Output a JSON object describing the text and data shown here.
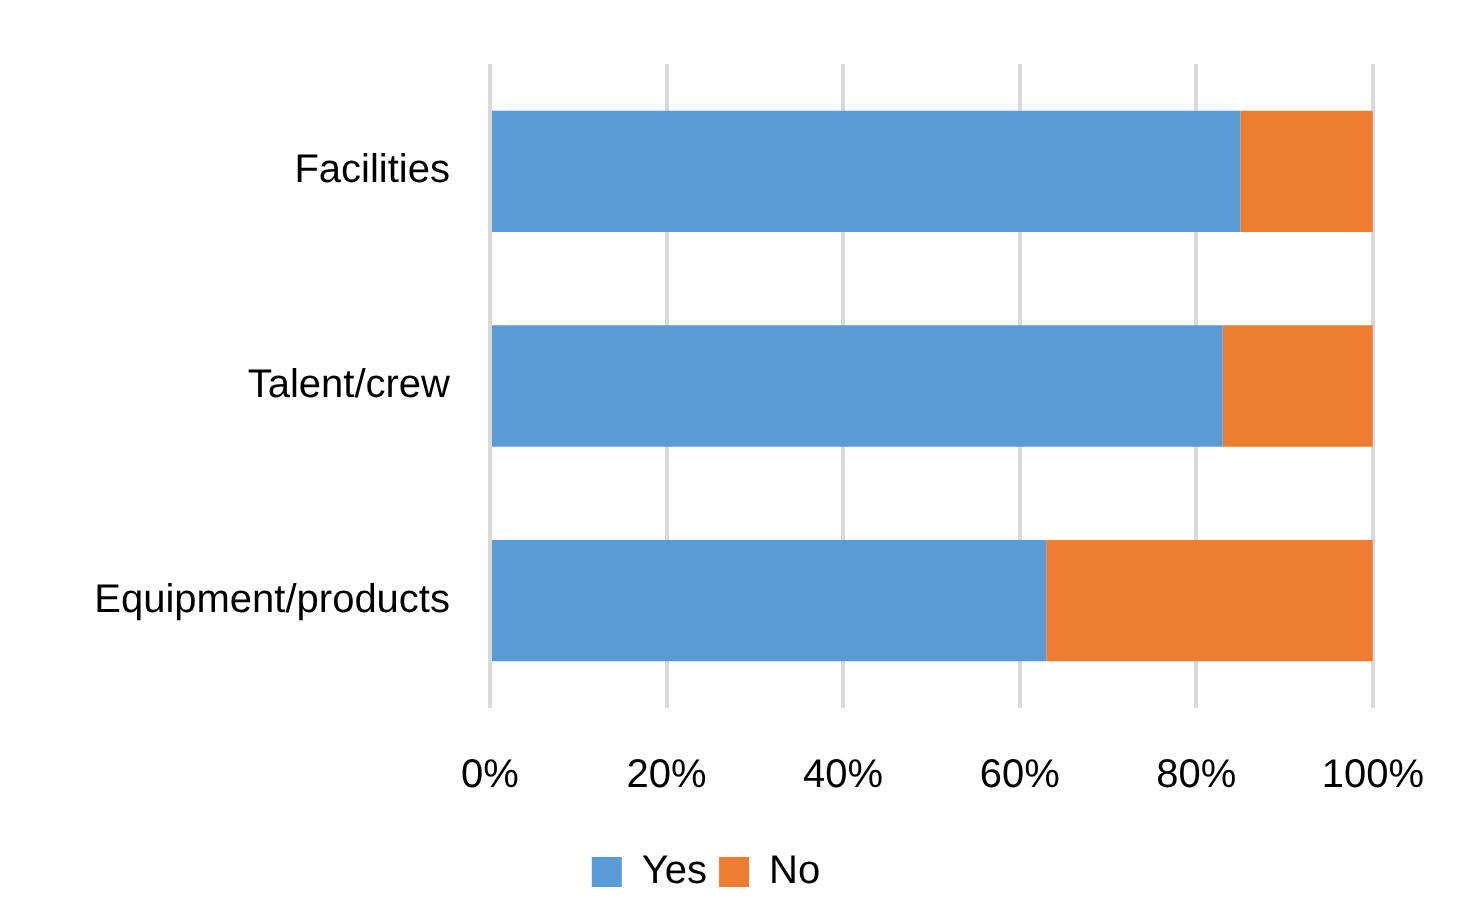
{
  "chart_data": {
    "type": "bar",
    "orientation": "horizontal",
    "stacked": true,
    "categories": [
      "Facilities",
      "Talent/crew",
      "Equipment/products"
    ],
    "series": [
      {
        "name": "Yes",
        "color": "#5b9bd5",
        "values": [
          85,
          83,
          63
        ]
      },
      {
        "name": "No",
        "color": "#ed7d31",
        "values": [
          15,
          17,
          37
        ]
      }
    ],
    "xlim": [
      0,
      100
    ],
    "xticks": [
      {
        "value": 0,
        "label": "0%"
      },
      {
        "value": 20,
        "label": "20%"
      },
      {
        "value": 40,
        "label": "40%"
      },
      {
        "value": 60,
        "label": "60%"
      },
      {
        "value": 80,
        "label": "80%"
      },
      {
        "value": 100,
        "label": "100%"
      }
    ],
    "grid": "x",
    "legend": "bottom"
  }
}
